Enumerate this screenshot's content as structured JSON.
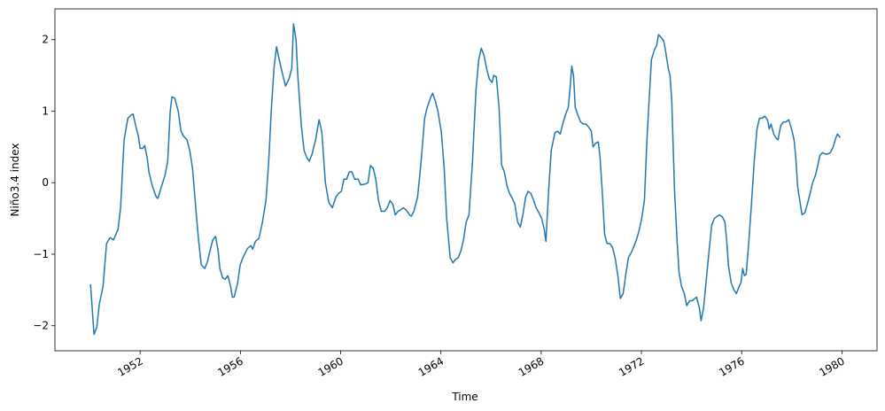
{
  "chart_data": {
    "type": "line",
    "xlabel": "Time",
    "ylabel": "Niño3.4 index",
    "color": "#1f77b4",
    "grid": false,
    "xlim": [
      1948.6,
      1981.4
    ],
    "ylim": [
      -2.35,
      2.43
    ],
    "xticks": [
      1952,
      1956,
      1960,
      1964,
      1968,
      1972,
      1976,
      1980
    ],
    "yticks": [
      {
        "value": -2,
        "label": "−2"
      },
      {
        "value": -1,
        "label": "−1"
      },
      0,
      1,
      2
    ],
    "x": [
      1950.02,
      1950.16,
      1950.27,
      1950.37,
      1950.52,
      1950.66,
      1950.8,
      1950.94,
      1951.12,
      1951.22,
      1951.36,
      1951.51,
      1951.65,
      1951.72,
      1951.82,
      1951.93,
      1952.0,
      1952.11,
      1952.18,
      1952.28,
      1952.35,
      1952.49,
      1952.64,
      1952.71,
      1952.81,
      1952.99,
      1953.1,
      1953.2,
      1953.27,
      1953.38,
      1953.52,
      1953.63,
      1953.73,
      1953.87,
      1953.98,
      1954.09,
      1954.23,
      1954.33,
      1954.44,
      1954.58,
      1954.69,
      1954.79,
      1954.9,
      1955.01,
      1955.11,
      1955.18,
      1955.29,
      1955.39,
      1955.5,
      1955.61,
      1955.68,
      1955.75,
      1955.89,
      1955.99,
      1956.1,
      1956.28,
      1956.42,
      1956.49,
      1956.6,
      1956.74,
      1956.88,
      1957.02,
      1957.13,
      1957.23,
      1957.34,
      1957.44,
      1957.55,
      1957.66,
      1957.8,
      1957.94,
      1958.05,
      1958.12,
      1958.22,
      1958.29,
      1958.43,
      1958.54,
      1958.65,
      1958.75,
      1958.86,
      1959.0,
      1959.14,
      1959.25,
      1959.39,
      1959.53,
      1959.67,
      1959.81,
      1959.92,
      1960.03,
      1960.13,
      1960.24,
      1960.34,
      1960.45,
      1960.56,
      1960.7,
      1960.8,
      1960.98,
      1961.09,
      1961.19,
      1961.3,
      1961.4,
      1961.51,
      1961.62,
      1961.76,
      1961.86,
      1961.97,
      1962.08,
      1962.18,
      1962.29,
      1962.39,
      1962.5,
      1962.61,
      1962.75,
      1962.82,
      1962.92,
      1963.07,
      1963.21,
      1963.35,
      1963.45,
      1963.6,
      1963.67,
      1963.77,
      1963.88,
      1964.02,
      1964.13,
      1964.23,
      1964.37,
      1964.48,
      1964.59,
      1964.69,
      1964.8,
      1964.9,
      1965.01,
      1965.12,
      1965.26,
      1965.4,
      1965.51,
      1965.61,
      1965.72,
      1965.82,
      1965.93,
      1966.04,
      1966.11,
      1966.21,
      1966.32,
      1966.42,
      1966.53,
      1966.64,
      1966.74,
      1966.85,
      1966.95,
      1967.06,
      1967.17,
      1967.27,
      1967.38,
      1967.48,
      1967.59,
      1967.7,
      1967.8,
      1967.91,
      1968.02,
      1968.12,
      1968.19,
      1968.3,
      1968.4,
      1968.55,
      1968.65,
      1968.76,
      1968.86,
      1968.97,
      1969.08,
      1969.15,
      1969.22,
      1969.29,
      1969.36,
      1969.46,
      1969.57,
      1969.68,
      1969.78,
      1969.89,
      1970.0,
      1970.07,
      1970.17,
      1970.28,
      1970.35,
      1970.45,
      1970.53,
      1970.63,
      1970.74,
      1970.84,
      1970.95,
      1971.06,
      1971.16,
      1971.27,
      1971.37,
      1971.48,
      1971.59,
      1971.69,
      1971.8,
      1971.9,
      1972.01,
      1972.12,
      1972.22,
      1972.33,
      1972.4,
      1972.51,
      1972.61,
      1972.68,
      1972.79,
      1972.89,
      1972.96,
      1973.07,
      1973.14,
      1973.21,
      1973.32,
      1973.42,
      1973.5,
      1973.6,
      1973.71,
      1973.81,
      1973.92,
      1974.03,
      1974.13,
      1974.2,
      1974.31,
      1974.38,
      1974.48,
      1974.59,
      1974.7,
      1974.8,
      1974.91,
      1975.02,
      1975.12,
      1975.23,
      1975.33,
      1975.4,
      1975.47,
      1975.58,
      1975.69,
      1975.79,
      1975.9,
      1975.97,
      1976.04,
      1976.11,
      1976.18,
      1976.29,
      1976.39,
      1976.5,
      1976.61,
      1976.71,
      1976.82,
      1976.92,
      1977.03,
      1977.1,
      1977.17,
      1977.28,
      1977.38,
      1977.45,
      1977.56,
      1977.67,
      1977.77,
      1977.88,
      1977.99,
      1978.09,
      1978.16,
      1978.23,
      1978.34,
      1978.41,
      1978.52,
      1978.62,
      1978.73,
      1978.83,
      1978.94,
      1979.01,
      1979.12,
      1979.22,
      1979.33,
      1979.43,
      1979.54,
      1979.65,
      1979.75,
      1979.82,
      1979.93
    ],
    "values": [
      -1.42,
      -2.12,
      -2.02,
      -1.7,
      -1.45,
      -0.85,
      -0.77,
      -0.8,
      -0.65,
      -0.35,
      0.6,
      0.9,
      0.95,
      0.96,
      0.8,
      0.65,
      0.48,
      0.48,
      0.52,
      0.35,
      0.15,
      -0.05,
      -0.2,
      -0.22,
      -0.1,
      0.1,
      0.3,
      1.0,
      1.2,
      1.18,
      1.0,
      0.72,
      0.65,
      0.6,
      0.45,
      0.2,
      -0.4,
      -0.8,
      -1.15,
      -1.2,
      -1.1,
      -0.95,
      -0.8,
      -0.75,
      -0.95,
      -1.2,
      -1.33,
      -1.35,
      -1.3,
      -1.45,
      -1.6,
      -1.6,
      -1.4,
      -1.15,
      -1.05,
      -0.92,
      -0.88,
      -0.93,
      -0.82,
      -0.78,
      -0.55,
      -0.25,
      0.3,
      1.0,
      1.6,
      1.9,
      1.72,
      1.55,
      1.35,
      1.45,
      1.6,
      2.22,
      2.0,
      1.5,
      0.8,
      0.45,
      0.35,
      0.3,
      0.4,
      0.6,
      0.88,
      0.7,
      0.0,
      -0.28,
      -0.35,
      -0.2,
      -0.15,
      -0.12,
      0.05,
      0.05,
      0.15,
      0.15,
      0.05,
      0.05,
      -0.03,
      -0.02,
      0.0,
      0.24,
      0.2,
      0.05,
      -0.25,
      -0.4,
      -0.4,
      -0.35,
      -0.25,
      -0.3,
      -0.45,
      -0.4,
      -0.38,
      -0.35,
      -0.38,
      -0.45,
      -0.47,
      -0.4,
      -0.2,
      0.3,
      0.9,
      1.05,
      1.2,
      1.25,
      1.15,
      1.0,
      0.7,
      0.2,
      -0.5,
      -1.05,
      -1.12,
      -1.07,
      -1.05,
      -0.95,
      -0.8,
      -0.55,
      -0.45,
      0.3,
      1.3,
      1.72,
      1.88,
      1.78,
      1.6,
      1.45,
      1.4,
      1.5,
      1.48,
      1.05,
      0.25,
      0.15,
      -0.05,
      -0.15,
      -0.22,
      -0.3,
      -0.55,
      -0.62,
      -0.45,
      -0.2,
      -0.12,
      -0.15,
      -0.25,
      -0.35,
      -0.42,
      -0.5,
      -0.65,
      -0.82,
      -0.1,
      0.45,
      0.7,
      0.72,
      0.68,
      0.82,
      0.95,
      1.05,
      1.3,
      1.63,
      1.5,
      1.05,
      0.95,
      0.85,
      0.82,
      0.82,
      0.78,
      0.72,
      0.5,
      0.55,
      0.57,
      0.35,
      -0.2,
      -0.72,
      -0.85,
      -0.85,
      -0.9,
      -1.05,
      -1.3,
      -1.62,
      -1.55,
      -1.3,
      -1.05,
      -0.98,
      -0.9,
      -0.8,
      -0.68,
      -0.5,
      -0.25,
      0.6,
      1.3,
      1.72,
      1.85,
      1.92,
      2.07,
      2.03,
      1.98,
      1.85,
      1.6,
      1.5,
      1.15,
      -0.1,
      -0.8,
      -1.25,
      -1.45,
      -1.55,
      -1.72,
      -1.65,
      -1.65,
      -1.62,
      -1.6,
      -1.75,
      -1.93,
      -1.75,
      -1.35,
      -0.95,
      -0.6,
      -0.5,
      -0.47,
      -0.45,
      -0.48,
      -0.55,
      -0.8,
      -1.15,
      -1.4,
      -1.5,
      -1.55,
      -1.45,
      -1.4,
      -1.2,
      -1.3,
      -1.28,
      -0.8,
      -0.3,
      0.3,
      0.75,
      0.9,
      0.9,
      0.93,
      0.88,
      0.75,
      0.82,
      0.68,
      0.62,
      0.6,
      0.8,
      0.85,
      0.85,
      0.88,
      0.75,
      0.6,
      0.35,
      -0.05,
      -0.3,
      -0.45,
      -0.42,
      -0.3,
      -0.15,
      0.0,
      0.1,
      0.2,
      0.38,
      0.42,
      0.4,
      0.4,
      0.42,
      0.5,
      0.62,
      0.68,
      0.63
    ]
  }
}
